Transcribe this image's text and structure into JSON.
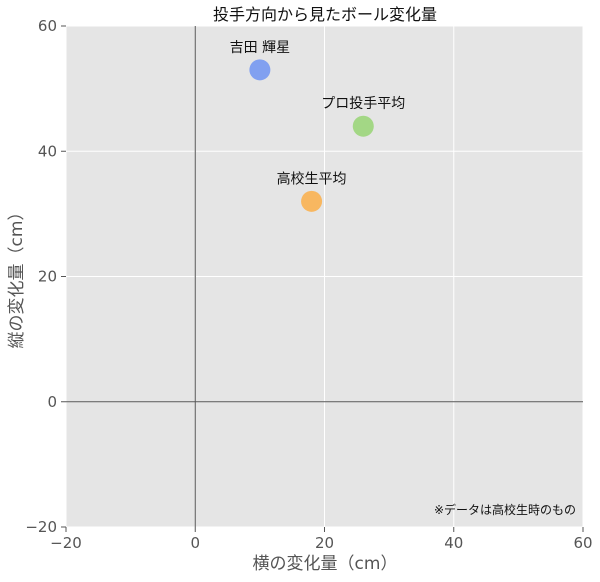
{
  "chart_data": {
    "type": "scatter",
    "title": "投手方向から見たボール変化量",
    "xlabel": "横の変化量（cm）",
    "ylabel": "縦の変化量（cm）",
    "xlim": [
      -20,
      60
    ],
    "ylim": [
      -20,
      60
    ],
    "x_ticks": [
      "−20",
      "0",
      "20",
      "40",
      "60"
    ],
    "y_ticks": [
      "−20",
      "0",
      "20",
      "40",
      "60"
    ],
    "grid": true,
    "points": [
      {
        "label": "吉田 輝星",
        "x": 10,
        "y": 53,
        "color": "#7b9cf0"
      },
      {
        "label": "プロ投手平均",
        "x": 26,
        "y": 44,
        "color": "#9fd67f"
      },
      {
        "label": "高校生平均",
        "x": 18,
        "y": 32,
        "color": "#f9b458"
      }
    ],
    "note": "※データは高校生時のもの",
    "background_color": "#e5e5e5",
    "grid_color": "#ffffff",
    "zero_line_color": "#555555"
  }
}
